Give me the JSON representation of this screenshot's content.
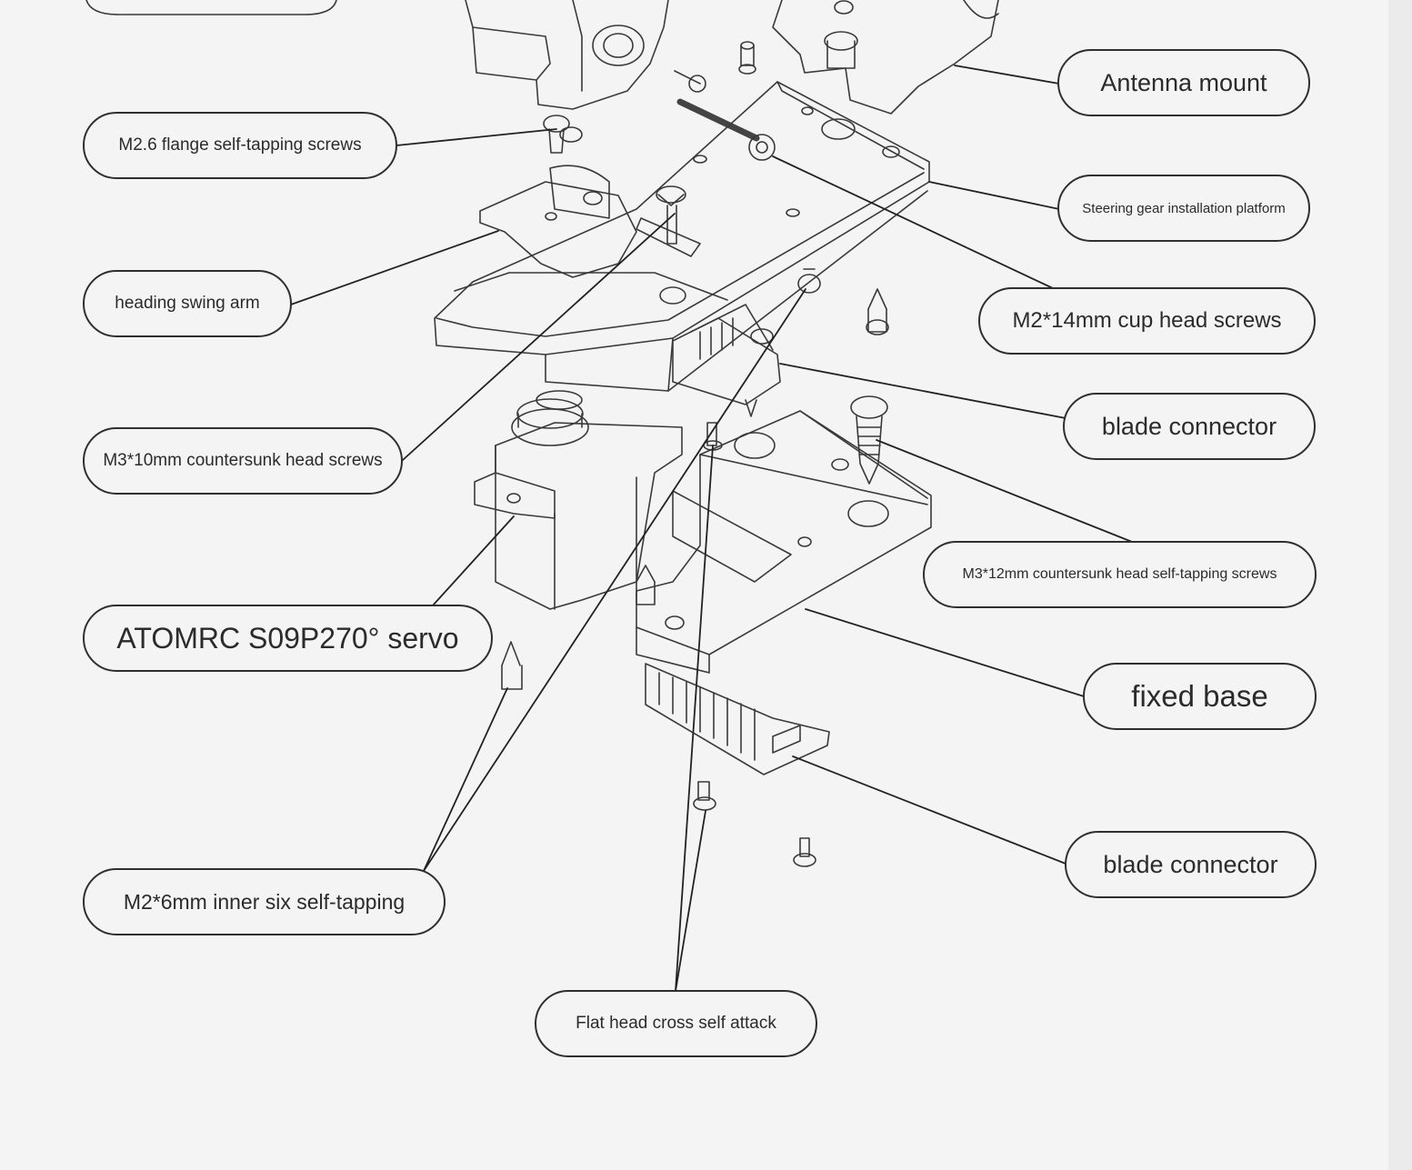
{
  "labels": [
    "Antenna mount",
    "M2.6 flange self-tapping screws",
    "Steering gear installation platform",
    "heading swing arm",
    "M2*14mm cup head screws",
    "blade connector",
    "M3*10mm countersunk head screws",
    "M3*12mm countersunk head self-tapping screws",
    "ATOMRC S09P270° servo",
    "fixed base",
    "M2*6mm inner six self-tapping",
    "blade connector",
    "Flat head cross self attack"
  ],
  "colors": {
    "background": "#f4f4f4",
    "line": "#2f2f2f",
    "text": "#2b2b2b"
  }
}
